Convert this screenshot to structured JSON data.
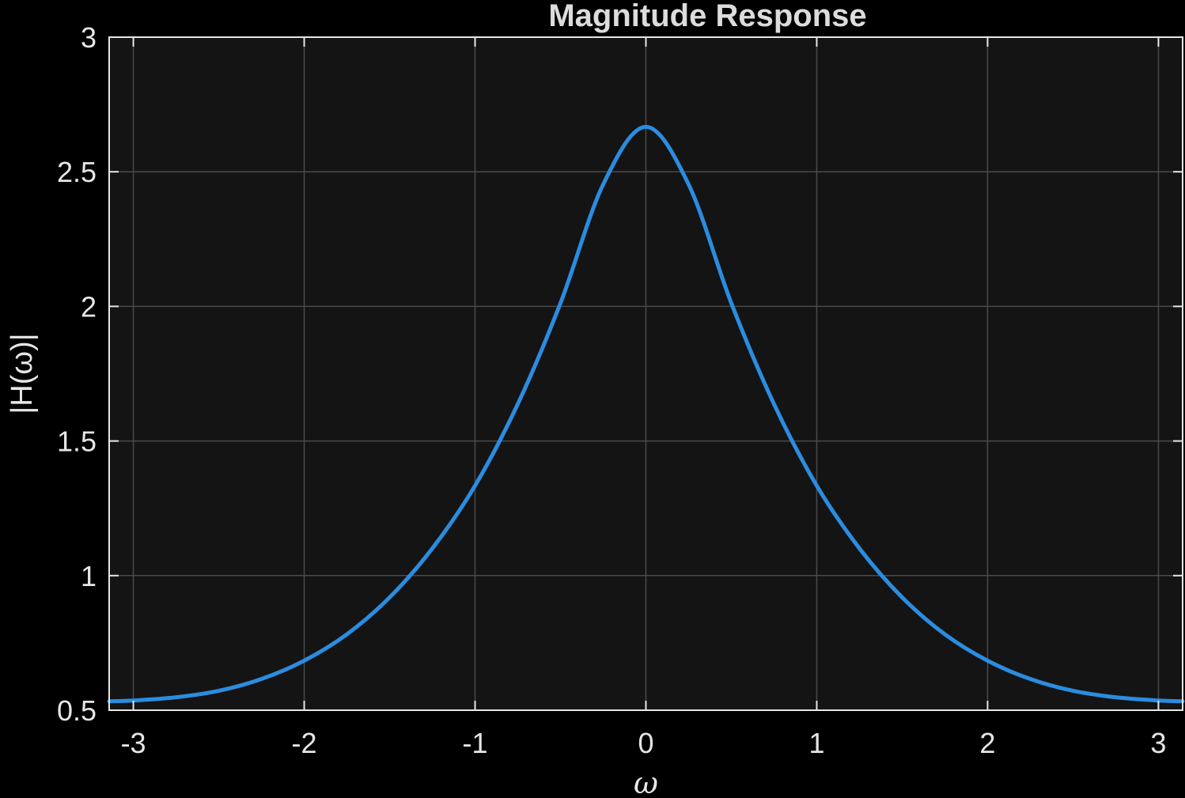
{
  "chart_data": {
    "type": "line",
    "title": "Magnitude Response",
    "xlabel": "ω",
    "ylabel": "|H(ω)|",
    "xlim": [
      -3.14159,
      3.14159
    ],
    "ylim": [
      0.5,
      3
    ],
    "grid": true,
    "x_ticks": [
      -3,
      -2,
      -1,
      0,
      1,
      2,
      3
    ],
    "y_ticks": [
      0.5,
      1,
      1.5,
      2,
      2.5,
      3
    ],
    "x_tick_labels": [
      "-3",
      "-2",
      "-1",
      "0",
      "1",
      "2",
      "3"
    ],
    "y_tick_labels": [
      "0.5",
      "1",
      "1.5",
      "2",
      "2.5",
      "3"
    ],
    "series": [
      {
        "color": "#2b8ce0",
        "x": [
          -3.1416,
          -3.0,
          -2.75,
          -2.5,
          -2.25,
          -2.0,
          -1.75,
          -1.5,
          -1.25,
          -1.0,
          -0.75,
          -0.5,
          -0.25,
          0.0,
          0.25,
          0.5,
          0.75,
          1.0,
          1.25,
          1.5,
          1.75,
          2.0,
          2.25,
          2.5,
          2.75,
          3.0,
          3.1416
        ],
        "y": [
          0.533,
          0.536,
          0.548,
          0.572,
          0.616,
          0.684,
          0.782,
          0.919,
          1.101,
          1.334,
          1.637,
          2.012,
          2.453,
          2.667,
          2.453,
          2.012,
          1.637,
          1.334,
          1.101,
          0.919,
          0.782,
          0.684,
          0.616,
          0.572,
          0.548,
          0.536,
          0.533
        ]
      }
    ],
    "colors": {
      "background": "#000000",
      "plot_area": "#141414",
      "grid": "#4a4a4a",
      "axes": "#e6e6e6",
      "line": "#2b8ce0"
    }
  }
}
